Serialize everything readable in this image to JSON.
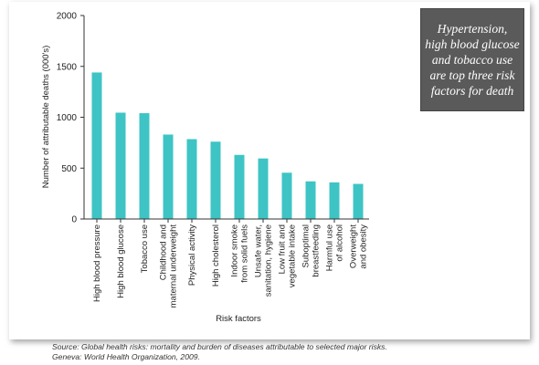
{
  "callout": {
    "text": "Hypertension, high blood glucose and tobacco use are top three risk factors for death"
  },
  "source": {
    "line1": "Source: Global health risks: mortality and burden of diseases attributable to selected major risks.",
    "line2": "Geneva: World Health Organization, 2009."
  },
  "colors": {
    "bar": "#3ec4c4",
    "axis": "#333333",
    "callout_bg": "#5a5a5a"
  },
  "chart_data": {
    "type": "bar",
    "xlabel": "Risk factors",
    "ylabel": "Number of attributable deaths (000's)",
    "ylim": [
      0,
      2000
    ],
    "yticks": [
      0,
      500,
      1000,
      1500,
      2000
    ],
    "grid": false,
    "categories": [
      [
        "High blood pressure"
      ],
      [
        "High blood glucose"
      ],
      [
        "Tobacco use"
      ],
      [
        "Childhood and",
        "maternal underweight"
      ],
      [
        "Physical activity"
      ],
      [
        "High cholesterol"
      ],
      [
        "Indoor smoke",
        "from solid fuels"
      ],
      [
        "Unsafe water,",
        "sanitation, hygiene"
      ],
      [
        "Low fruit and",
        "vegetable intake"
      ],
      [
        "Suboptimal",
        "breastfeeding"
      ],
      [
        "Harmful use",
        "of alcohol"
      ],
      [
        "Overweight",
        "and obesity"
      ]
    ],
    "values": [
      1440,
      1045,
      1040,
      830,
      785,
      760,
      630,
      595,
      455,
      370,
      360,
      345
    ]
  }
}
